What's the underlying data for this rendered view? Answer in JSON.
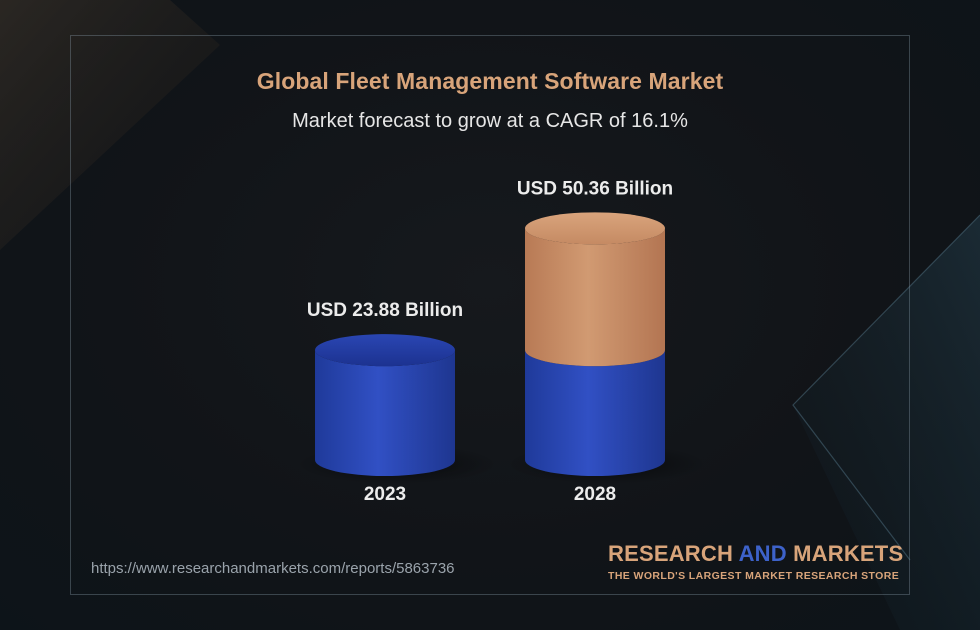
{
  "header": {
    "title": "Global Fleet Management Software Market",
    "subtitle": "Market forecast to grow at a CAGR of 16.1%"
  },
  "chart_data": {
    "type": "bar",
    "style": "3d-cylinder",
    "title": "Global Fleet Management Software Market",
    "subtitle": "Market forecast to grow at a CAGR of 16.1%",
    "categories": [
      "2023",
      "2028"
    ],
    "values": [
      23.88,
      50.36
    ],
    "value_labels": [
      "USD 23.88 Billion",
      "USD 50.36 Billion"
    ],
    "unit": "USD Billion",
    "base_value": 23.88,
    "colors": {
      "base": "#2f4fbf",
      "growth": "#cf9068"
    },
    "grid": false,
    "legend": "none"
  },
  "footer": {
    "url": "https://www.researchandmarkets.com/reports/5863736"
  },
  "brand": {
    "name_part1": "RESEARCH ",
    "name_part2": "AND",
    "name_part3": " MARKETS",
    "tagline": "THE WORLD'S LARGEST MARKET RESEARCH STORE"
  },
  "colors": {
    "accent": "#d8a47a",
    "brand_blue": "#3d62c9",
    "background": "#111418"
  }
}
